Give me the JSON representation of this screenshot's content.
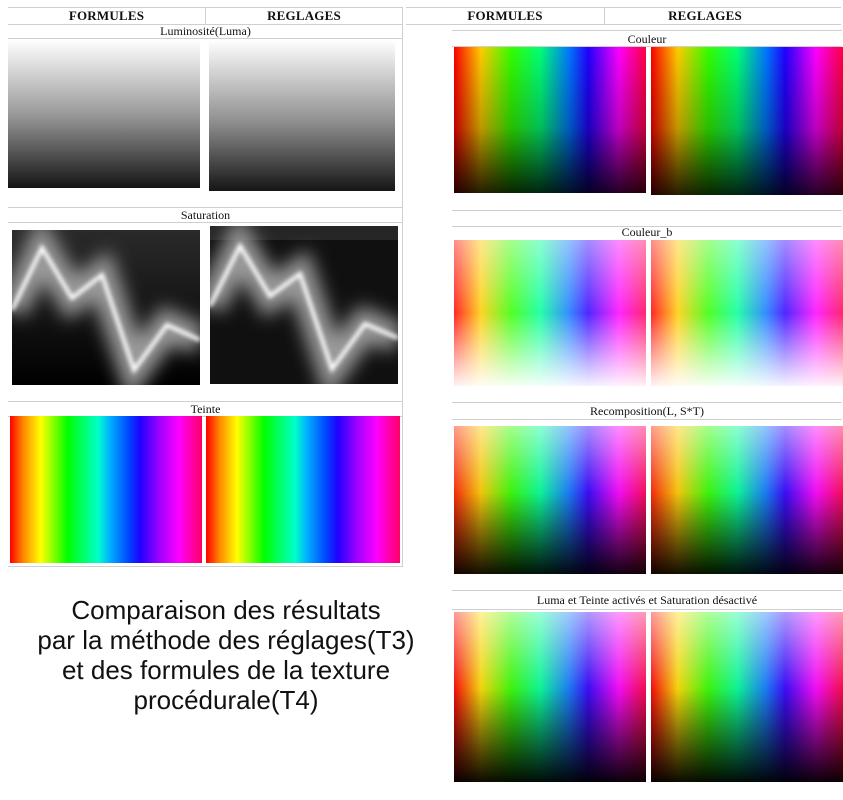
{
  "left_table": {
    "headers": {
      "formules": "FORMULES",
      "reglages": "REGLAGES"
    },
    "sections": [
      {
        "key": "luma",
        "title": "Luminosité(Luma)"
      },
      {
        "key": "saturation",
        "title": "Saturation"
      },
      {
        "key": "teinte",
        "title": "Teinte"
      }
    ]
  },
  "right_table": {
    "headers": {
      "formules": "FORMULES",
      "reglages": "REGLAGES"
    },
    "sections": [
      {
        "key": "couleur",
        "title": "Couleur"
      },
      {
        "key": "couleur_b",
        "title": "Couleur_b"
      },
      {
        "key": "recomposition",
        "title": "Recomposition(L, S*T)"
      },
      {
        "key": "luma_teinte",
        "title": "Luma et Teinte activés et Saturation désactivé"
      }
    ]
  },
  "caption": {
    "lines": [
      "Comparaison des résultats",
      "par la méthode des réglages(T3)",
      "et des formules de la texture",
      "procédurale(T4)"
    ]
  }
}
